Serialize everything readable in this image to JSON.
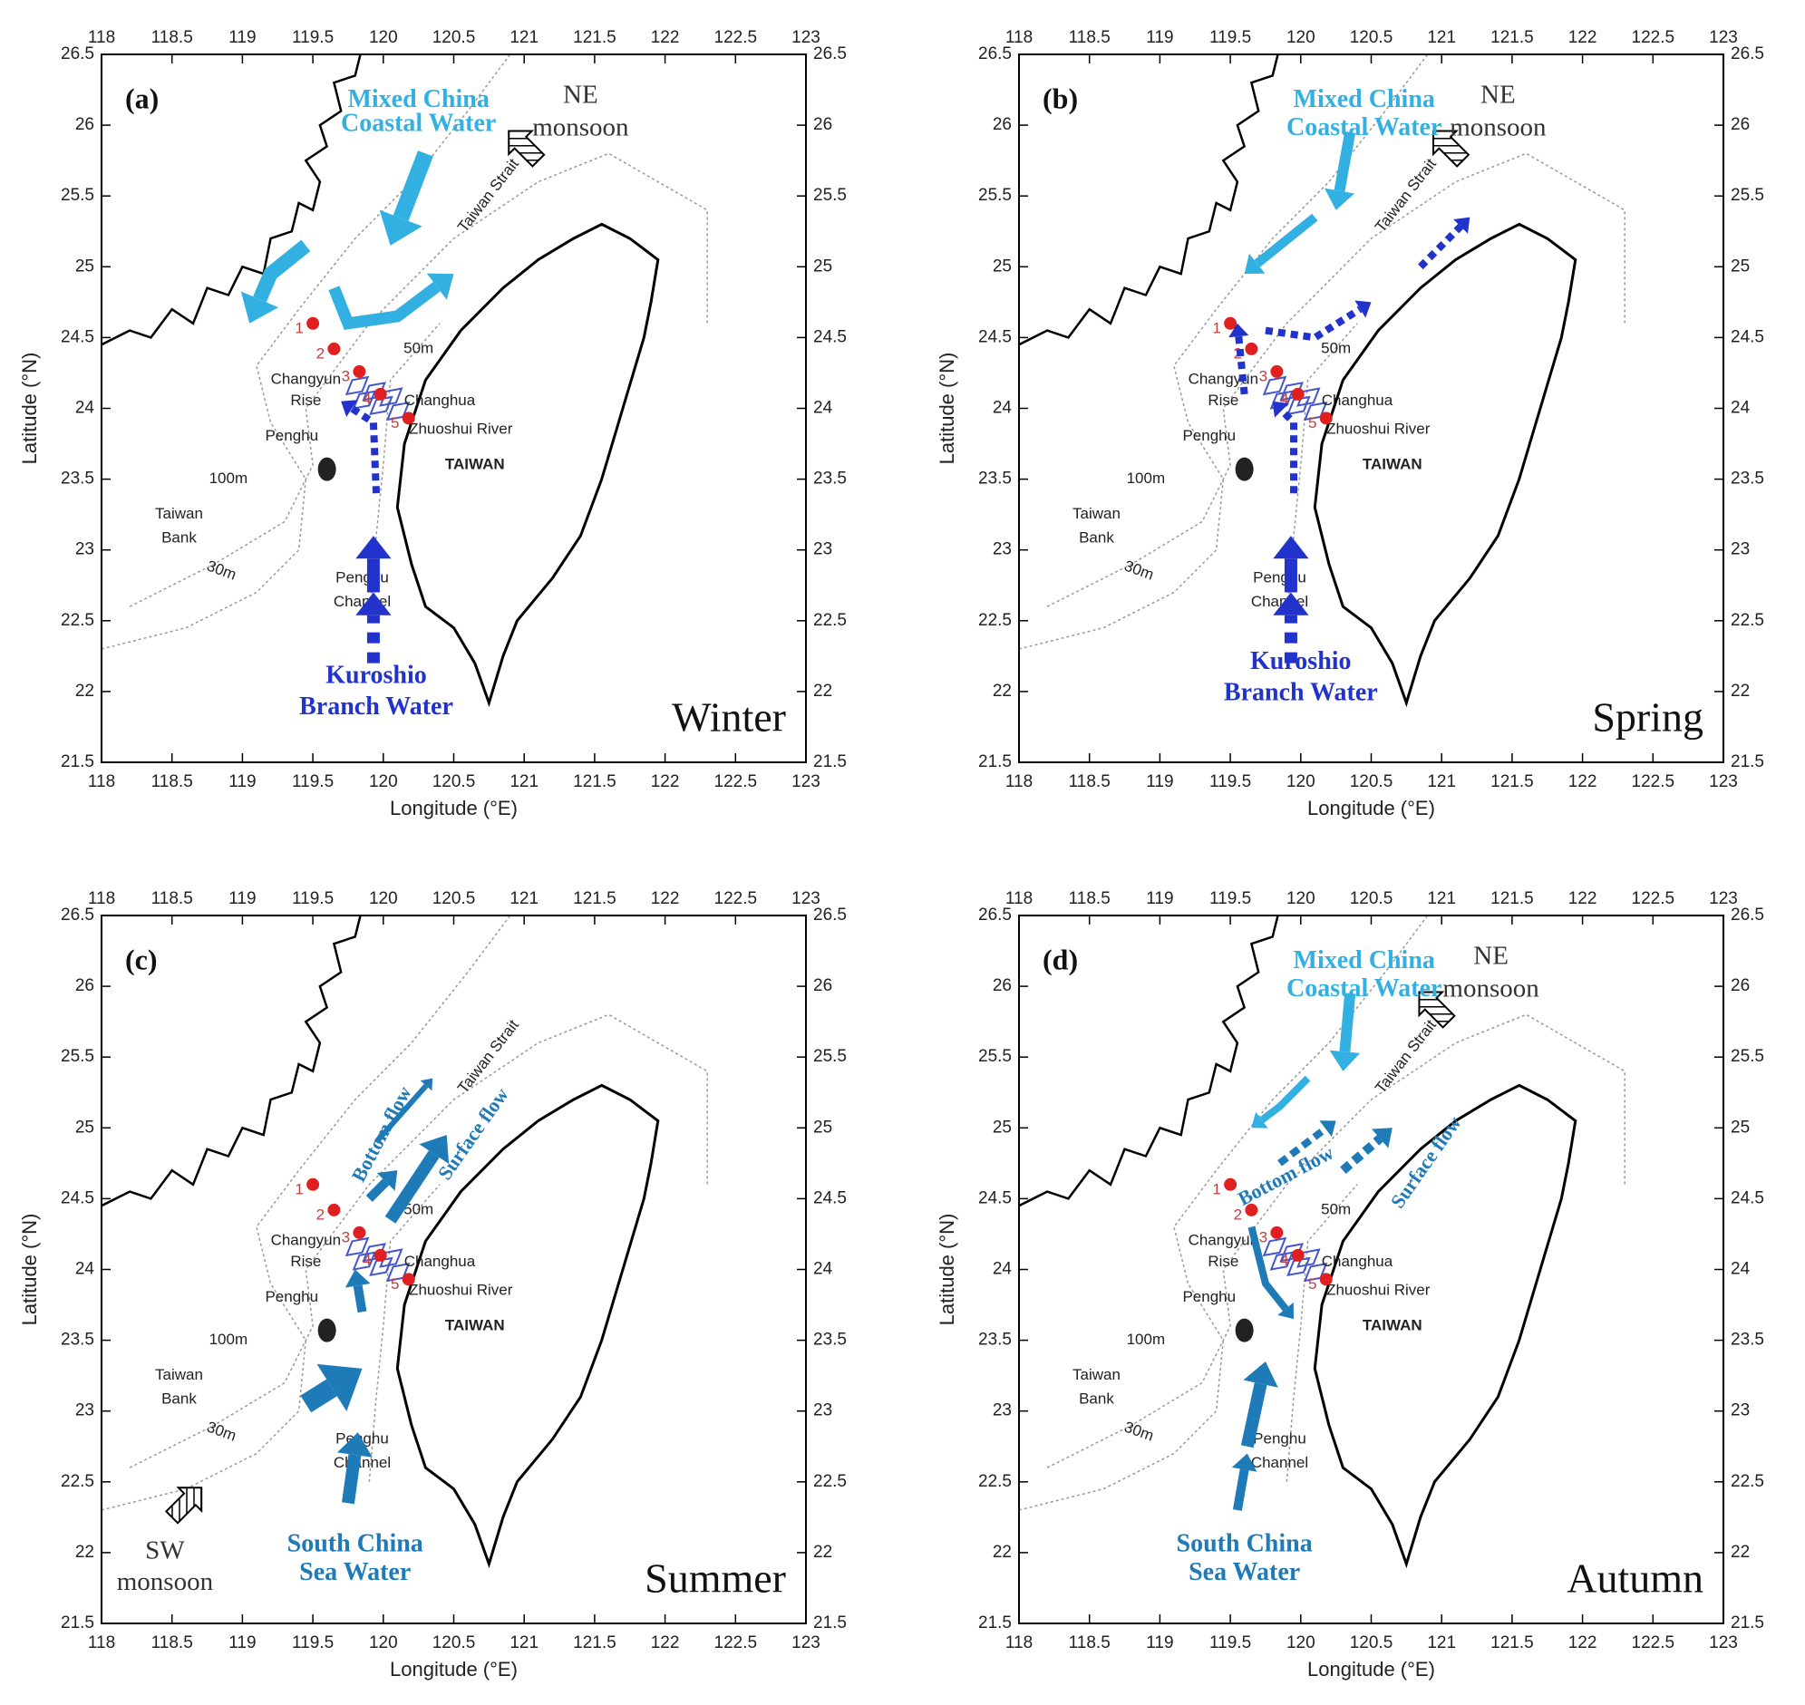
{
  "x_label": "Longitude (°E)",
  "y_label": "Latitude (°N)",
  "xlim": [
    118,
    123
  ],
  "ylim": [
    21.5,
    26.5
  ],
  "xticks": [
    118,
    118.5,
    119,
    119.5,
    120,
    120.5,
    121,
    121.5,
    122,
    122.5,
    123
  ],
  "yticks": [
    21.5,
    22,
    22.5,
    23,
    23.5,
    24,
    24.5,
    25,
    25.5,
    26,
    26.5
  ],
  "map_labels": {
    "strait": "Taiwan Strait",
    "changyun": "Changyun",
    "rise": "Rise",
    "changhua": "Changhua",
    "penghu": "Penghu",
    "taiwan": "TAIWAN",
    "isobath_100": "100m",
    "bank_1": "Taiwan",
    "bank_2": "Bank",
    "isobath_30": "30m",
    "isobath_50": "50m",
    "channel_1": "Penghu",
    "channel_2": "Channel",
    "river": "Zhuoshui River",
    "stations": [
      "1",
      "2",
      "3",
      "4",
      "5"
    ]
  },
  "panels": [
    {
      "label": "(a)",
      "season": "Winter",
      "monsoon": [
        "NE",
        "monsoon"
      ],
      "water_masses": [
        {
          "lines": [
            "Mixed  China",
            "Coastal Water"
          ]
        },
        {
          "lines": [
            "Kuroshio",
            "Branch Water"
          ]
        }
      ]
    },
    {
      "label": "(b)",
      "season": "Spring",
      "monsoon": [
        "NE",
        "monsoon"
      ],
      "water_masses": [
        {
          "lines": [
            "Mixed  China",
            "Coastal Water"
          ]
        },
        {
          "lines": [
            "Kuroshio",
            "Branch Water"
          ]
        }
      ]
    },
    {
      "label": "(c)",
      "season": "Summer",
      "monsoon": [
        "SW",
        "monsoon"
      ],
      "water_masses": [
        {
          "lines": [
            "South China",
            "Sea Water"
          ]
        }
      ],
      "flows": [
        "Bottom flow",
        "Surface flow"
      ]
    },
    {
      "label": "(d)",
      "season": "Autumn",
      "monsoon": [
        "NE",
        "monsoon"
      ],
      "water_masses": [
        {
          "lines": [
            "Mixed  China",
            "Coastal Water"
          ]
        },
        {
          "lines": [
            "South China",
            "Sea Water"
          ]
        }
      ],
      "flows": [
        "Bottom flow",
        "Surface flow"
      ]
    }
  ]
}
